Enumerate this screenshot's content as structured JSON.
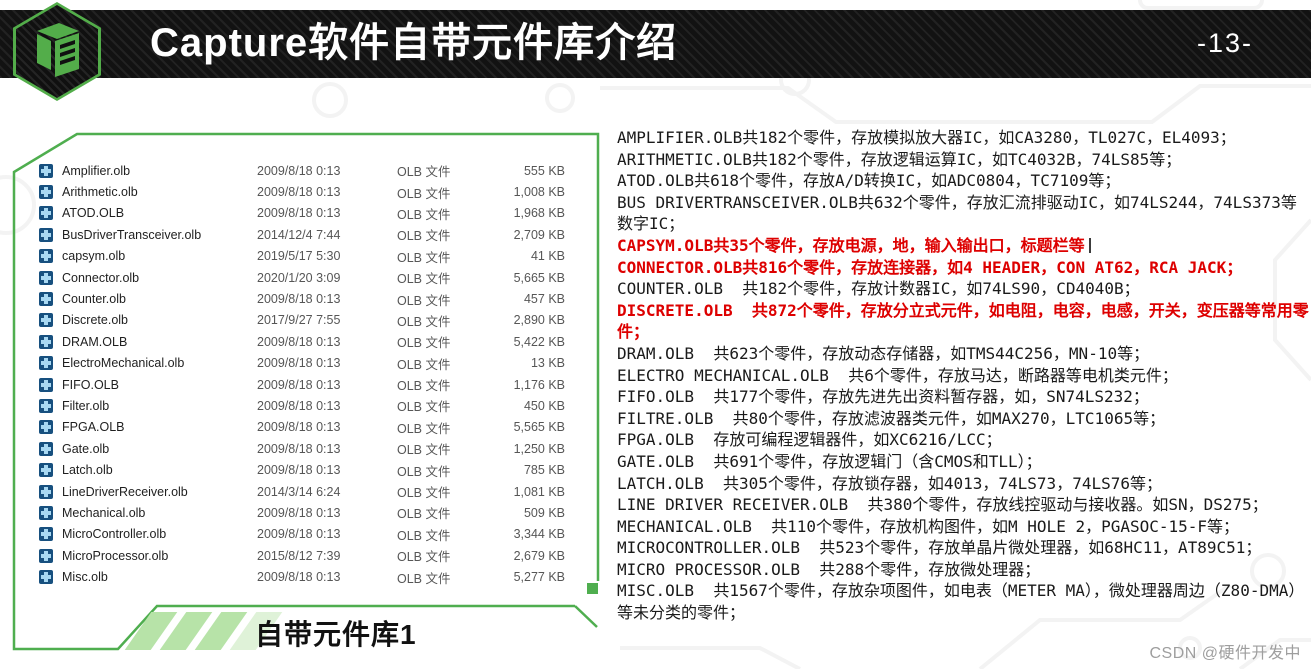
{
  "header": {
    "title": "Capture软件自带元件库介绍",
    "page_number": "-13-"
  },
  "file_panel": {
    "caption": "自带元件库1",
    "rows": [
      {
        "name": "Amplifier.olb",
        "date": "2009/8/18 0:13",
        "type": "OLB 文件",
        "size": "555 KB"
      },
      {
        "name": "Arithmetic.olb",
        "date": "2009/8/18 0:13",
        "type": "OLB 文件",
        "size": "1,008 KB"
      },
      {
        "name": "ATOD.OLB",
        "date": "2009/8/18 0:13",
        "type": "OLB 文件",
        "size": "1,968 KB"
      },
      {
        "name": "BusDriverTransceiver.olb",
        "date": "2014/12/4 7:44",
        "type": "OLB 文件",
        "size": "2,709 KB"
      },
      {
        "name": "capsym.olb",
        "date": "2019/5/17 5:30",
        "type": "OLB 文件",
        "size": "41 KB"
      },
      {
        "name": "Connector.olb",
        "date": "2020/1/20 3:09",
        "type": "OLB 文件",
        "size": "5,665 KB"
      },
      {
        "name": "Counter.olb",
        "date": "2009/8/18 0:13",
        "type": "OLB 文件",
        "size": "457 KB"
      },
      {
        "name": "Discrete.olb",
        "date": "2017/9/27 7:55",
        "type": "OLB 文件",
        "size": "2,890 KB"
      },
      {
        "name": "DRAM.OLB",
        "date": "2009/8/18 0:13",
        "type": "OLB 文件",
        "size": "5,422 KB"
      },
      {
        "name": "ElectroMechanical.olb",
        "date": "2009/8/18 0:13",
        "type": "OLB 文件",
        "size": "13 KB"
      },
      {
        "name": "FIFO.OLB",
        "date": "2009/8/18 0:13",
        "type": "OLB 文件",
        "size": "1,176 KB"
      },
      {
        "name": "Filter.olb",
        "date": "2009/8/18 0:13",
        "type": "OLB 文件",
        "size": "450 KB"
      },
      {
        "name": "FPGA.OLB",
        "date": "2009/8/18 0:13",
        "type": "OLB 文件",
        "size": "5,565 KB"
      },
      {
        "name": "Gate.olb",
        "date": "2009/8/18 0:13",
        "type": "OLB 文件",
        "size": "1,250 KB"
      },
      {
        "name": "Latch.olb",
        "date": "2009/8/18 0:13",
        "type": "OLB 文件",
        "size": "785 KB"
      },
      {
        "name": "LineDriverReceiver.olb",
        "date": "2014/3/14 6:24",
        "type": "OLB 文件",
        "size": "1,081 KB"
      },
      {
        "name": "Mechanical.olb",
        "date": "2009/8/18 0:13",
        "type": "OLB 文件",
        "size": "509 KB"
      },
      {
        "name": "MicroController.olb",
        "date": "2009/8/18 0:13",
        "type": "OLB 文件",
        "size": "3,344 KB"
      },
      {
        "name": "MicroProcessor.olb",
        "date": "2015/8/12 7:39",
        "type": "OLB 文件",
        "size": "2,679 KB"
      },
      {
        "name": "Misc.olb",
        "date": "2009/8/18 0:13",
        "type": "OLB 文件",
        "size": "5,277 KB"
      }
    ]
  },
  "descriptions": {
    "lines": [
      {
        "text": "AMPLIFIER.OLB共182个零件，存放模拟放大器IC，如CA3280，TL027C，EL4093；",
        "emphasis": false,
        "cursor": false
      },
      {
        "text": "ARITHMETIC.OLB共182个零件，存放逻辑运算IC，如TC4032B，74LS85等；",
        "emphasis": false,
        "cursor": false
      },
      {
        "text": "ATOD.OLB共618个零件，存放A/D转换IC，如ADC0804，TC7109等；",
        "emphasis": false,
        "cursor": false
      },
      {
        "text": "BUS DRIVERTRANSCEIVER.OLB共632个零件，存放汇流排驱动IC，如74LS244，74LS373等数字IC；",
        "emphasis": false,
        "cursor": false
      },
      {
        "text": "CAPSYM.OLB共35个零件，存放电源，地，输入输出口，标题栏等",
        "emphasis": true,
        "cursor": true
      },
      {
        "text": "CONNECTOR.OLB共816个零件，存放连接器，如4 HEADER，CON AT62，RCA JACK；",
        "emphasis": true,
        "cursor": false
      },
      {
        "text": "COUNTER.OLB  共182个零件，存放计数器IC，如74LS90，CD4040B；",
        "emphasis": false,
        "cursor": false
      },
      {
        "text": "DISCRETE.OLB  共872个零件，存放分立式元件，如电阻，电容，电感，开关，变压器等常用零件；",
        "emphasis": true,
        "cursor": false
      },
      {
        "text": "DRAM.OLB  共623个零件，存放动态存储器，如TMS44C256，MN-10等；",
        "emphasis": false,
        "cursor": false
      },
      {
        "text": "ELECTRO MECHANICAL.OLB  共6个零件，存放马达，断路器等电机类元件；",
        "emphasis": false,
        "cursor": false
      },
      {
        "text": "FIFO.OLB  共177个零件，存放先进先出资料暂存器，如，SN74LS232；",
        "emphasis": false,
        "cursor": false
      },
      {
        "text": "FILTRE.OLB  共80个零件，存放滤波器类元件，如MAX270，LTC1065等；",
        "emphasis": false,
        "cursor": false
      },
      {
        "text": "FPGA.OLB  存放可编程逻辑器件，如XC6216/LCC；",
        "emphasis": false,
        "cursor": false
      },
      {
        "text": "GATE.OLB  共691个零件，存放逻辑门（含CMOS和TLL）；",
        "emphasis": false,
        "cursor": false
      },
      {
        "text": "LATCH.OLB  共305个零件，存放锁存器，如4013，74LS73，74LS76等；",
        "emphasis": false,
        "cursor": false
      },
      {
        "text": "LINE DRIVER RECEIVER.OLB  共380个零件，存放线控驱动与接收器。如SN，DS275；",
        "emphasis": false,
        "cursor": false
      },
      {
        "text": "MECHANICAL.OLB  共110个零件，存放机构图件，如M HOLE 2，PGASOC-15-F等；",
        "emphasis": false,
        "cursor": false
      },
      {
        "text": "MICROCONTROLLER.OLB  共523个零件，存放单晶片微处理器，如68HC11，AT89C51；",
        "emphasis": false,
        "cursor": false
      },
      {
        "text": "MICRO PROCESSOR.OLB  共288个零件，存放微处理器；",
        "emphasis": false,
        "cursor": false
      },
      {
        "text": "MISC.OLB  共1567个零件，存放杂项图件，如电表（METER MA），微处理器周边（Z80-DMA）等未分类的零件；",
        "emphasis": false,
        "cursor": false
      }
    ]
  },
  "watermark": "CSDN @硬件开发中",
  "colors": {
    "accent_green": "#53ad4a",
    "stripe_green": "#b7e3a8",
    "emphasis_red": "#dd0000",
    "header_bg": "#141414"
  }
}
